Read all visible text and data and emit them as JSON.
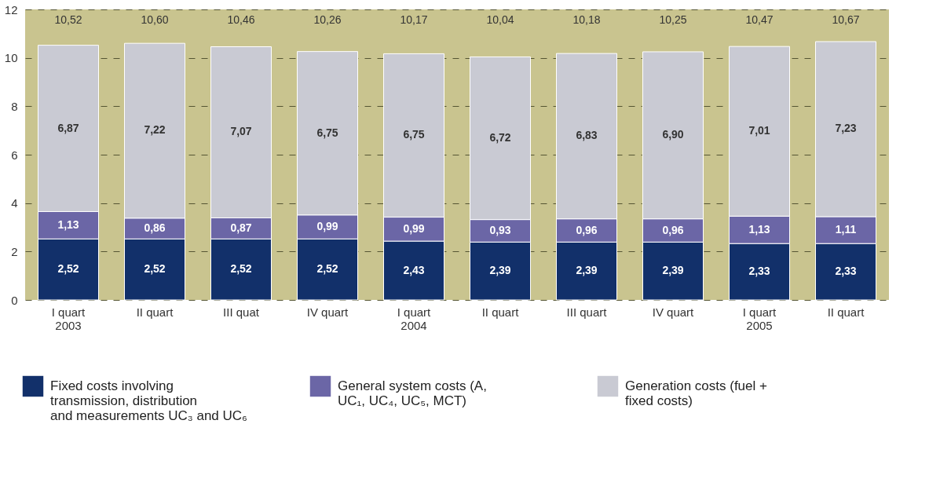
{
  "chart_data": {
    "type": "bar",
    "stacked": true,
    "categories": [
      "I quart 2003",
      "II quart",
      "III quat",
      "IV quart",
      "I quart 2004",
      "II quart",
      "III quart",
      "IV quart",
      "I quart 2005",
      "II quart"
    ],
    "series": [
      {
        "name": "Fixed costs involving transmission, distribution and measurements UC₃ and UC₆",
        "color": "#12306a",
        "values": [
          2.52,
          2.52,
          2.52,
          2.52,
          2.43,
          2.39,
          2.39,
          2.39,
          2.33,
          2.33
        ],
        "value_labels": [
          "2,52",
          "2,52",
          "2,52",
          "2,52",
          "2,43",
          "2,39",
          "2,39",
          "2,39",
          "2,33",
          "2,33"
        ]
      },
      {
        "name": "General system costs (A, UC₁, UC₄, UC₅, MCT)",
        "color": "#6b66a6",
        "values": [
          1.13,
          0.86,
          0.87,
          0.99,
          0.99,
          0.93,
          0.96,
          0.96,
          1.13,
          1.11
        ],
        "value_labels": [
          "1,13",
          "0,86",
          "0,87",
          "0,99",
          "0,99",
          "0,93",
          "0,96",
          "0,96",
          "1,13",
          "1,11"
        ]
      },
      {
        "name": "Generation costs (fuel + fixed costs)",
        "color": "#c9cad3",
        "values": [
          6.87,
          7.22,
          7.07,
          6.75,
          6.75,
          6.72,
          6.83,
          6.9,
          7.01,
          7.23
        ],
        "value_labels": [
          "6,87",
          "7,22",
          "7,07",
          "6,75",
          "6,75",
          "6,72",
          "6,83",
          "6,90",
          "7,01",
          "7,23"
        ]
      }
    ],
    "totals": [
      "10,52",
      "10,60",
      "10,46",
      "10,26",
      "10,17",
      "10,04",
      "10,18",
      "10,25",
      "10,47",
      "10,67"
    ],
    "ylim": [
      0,
      12
    ],
    "yticks": [
      0,
      2,
      4,
      6,
      8,
      10,
      12
    ],
    "grid": "y",
    "legend": "bottom"
  }
}
